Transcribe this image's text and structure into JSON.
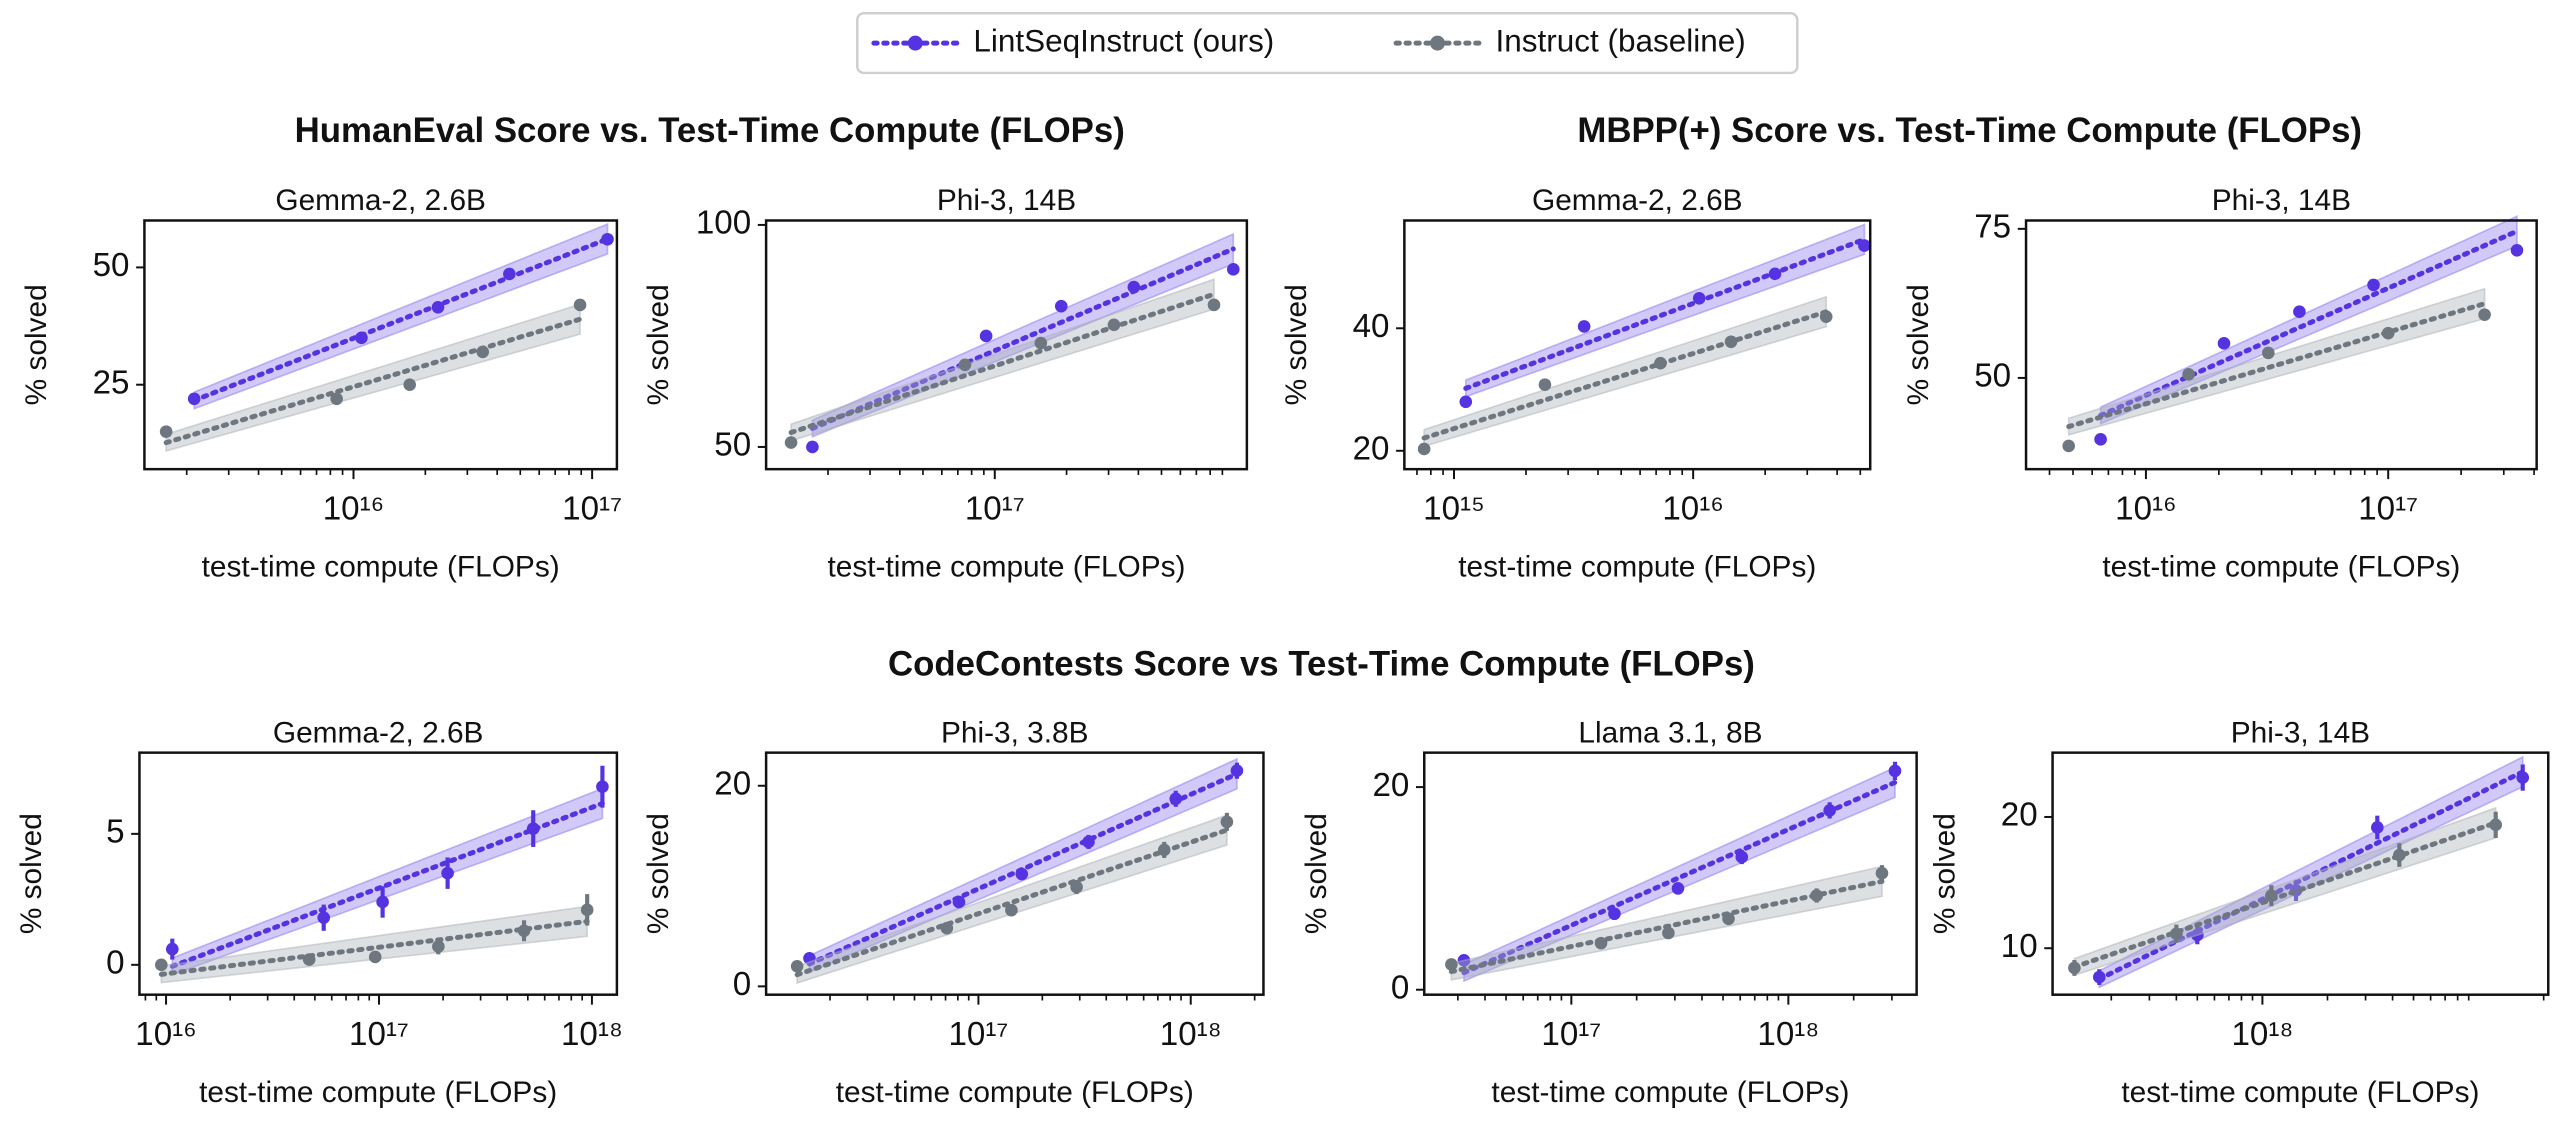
{
  "group_titles": [
    "HumanEval Score vs. Test-Time Compute (FLOPs)",
    "MBPP(+) Score vs. Test-Time Compute (FLOPs)",
    "CodeContests Score vs Test-Time Compute (FLOPs)"
  ],
  "chart_data": [
    {
      "type": "line",
      "title": "Gemma-2, 2.6B",
      "xlabel": "test-time compute (FLOPs)",
      "ylabel": "% solved",
      "xscale": "log",
      "xlim": [
        1330000000000000.0,
        1.27e+17
      ],
      "xticks": [
        {
          "value": 1e+16,
          "label": "10¹⁶"
        },
        {
          "value": 1e+17,
          "label": "10¹⁷"
        }
      ],
      "ylim": [
        7,
        60
      ],
      "yticks": [
        25,
        50
      ],
      "series": [
        {
          "name": "LintSeqInstruct (ours)",
          "color": "#5533e0",
          "x": [
            2150000000000000.0,
            1.08e+16,
            2.26e+16,
            4.5e+16,
            1.16e+17
          ],
          "values": [
            22,
            35,
            41.5,
            48.6,
            56
          ]
        },
        {
          "name": "Instruct (baseline)",
          "color": "#6e7780",
          "x": [
            1640000000000000.0,
            8500000000000000.0,
            1.72e+16,
            3.48e+16,
            8.9e+16
          ],
          "values": [
            15,
            22,
            25,
            32,
            42
          ]
        }
      ]
    },
    {
      "type": "line",
      "title": "Phi-3, 14B",
      "xlabel": "test-time compute (FLOPs)",
      "ylabel": "% solved",
      "xscale": "log",
      "xlim": [
        1.1e+16,
        1.14e+18
      ],
      "xticks": [
        {
          "value": 1e+17,
          "label": "10¹⁷"
        }
      ],
      "ylim": [
        45,
        101
      ],
      "yticks": [
        50,
        100
      ],
      "series": [
        {
          "name": "LintSeqInstruct (ours)",
          "color": "#5533e0",
          "x": [
            1.72e+16,
            9.2e+16,
            1.9e+17,
            3.83e+17,
            1e+18
          ],
          "values": [
            50,
            75,
            81.7,
            86,
            90
          ]
        },
        {
          "name": "Instruct (baseline)",
          "color": "#6e7780",
          "x": [
            1.4e+16,
            7.5e+16,
            1.56e+17,
            3.16e+17,
            8.3e+17
          ],
          "values": [
            51,
            68.5,
            73.4,
            77.5,
            82
          ]
        }
      ]
    },
    {
      "type": "line",
      "title": "Gemma-2, 2.6B",
      "xlabel": "test-time compute (FLOPs)",
      "ylabel": "% solved",
      "xscale": "log",
      "xlim": [
        620000000000000.0,
        5.5e+16
      ],
      "xticks": [
        {
          "value": 1000000000000000.0,
          "label": "10¹⁵"
        },
        {
          "value": 1e+16,
          "label": "10¹⁶"
        }
      ],
      "ylim": [
        17,
        57.6
      ],
      "yticks": [
        20,
        40
      ],
      "series": [
        {
          "name": "LintSeqInstruct (ours)",
          "color": "#5533e0",
          "x": [
            1120000000000000.0,
            3500000000000000.0,
            1.06e+16,
            2.2e+16,
            5.2e+16
          ],
          "values": [
            28,
            40.3,
            44.9,
            48.9,
            53.5
          ]
        },
        {
          "name": "Instruct (baseline)",
          "color": "#6e7780",
          "x": [
            750000000000000.0,
            2400000000000000.0,
            7300000000000000.0,
            1.44e+16,
            3.6e+16
          ],
          "values": [
            20.3,
            30.8,
            34.3,
            37.8,
            41.9
          ]
        }
      ]
    },
    {
      "type": "line",
      "title": "Phi-3, 14B",
      "xlabel": "test-time compute (FLOPs)",
      "ylabel": "% solved",
      "xscale": "log",
      "xlim": [
        3200000000000000.0,
        4.1e+17
      ],
      "xticks": [
        {
          "value": 1e+16,
          "label": "10¹⁶"
        },
        {
          "value": 1e+17,
          "label": "10¹⁷"
        }
      ],
      "ylim": [
        34.7,
        76.4
      ],
      "yticks": [
        50,
        75
      ],
      "series": [
        {
          "name": "LintSeqInstruct (ours)",
          "color": "#5533e0",
          "x": [
            6500000000000000.0,
            2.1e+16,
            4.3e+16,
            8.7e+16,
            3.4e+17
          ],
          "values": [
            39.7,
            55.8,
            61.1,
            65.6,
            71.4
          ]
        },
        {
          "name": "Instruct (baseline)",
          "color": "#6e7780",
          "x": [
            4800000000000000.0,
            1.5e+16,
            3.2e+16,
            1e+17,
            2.5e+17
          ],
          "values": [
            38.6,
            50.6,
            54.2,
            57.5,
            60.6
          ]
        }
      ]
    },
    {
      "type": "line",
      "title": "Gemma-2, 2.6B",
      "xlabel": "test-time compute (FLOPs)",
      "ylabel": "% solved",
      "xscale": "log",
      "xlim": [
        7500000000000000.0,
        1.31e+18
      ],
      "xticks": [
        {
          "value": 1e+16,
          "label": "10¹⁶"
        },
        {
          "value": 1e+17,
          "label": "10¹⁷"
        },
        {
          "value": 1e+18,
          "label": "10¹⁸"
        }
      ],
      "ylim": [
        -1.14,
        8.1
      ],
      "yticks": [
        0,
        5
      ],
      "series": [
        {
          "name": "LintSeqInstruct (ours)",
          "color": "#5533e0",
          "x": [
            1.07e+16,
            5.5e+16,
            1.04e+17,
            2.1e+17,
            5.3e+17,
            1.12e+18
          ],
          "values": [
            0.6,
            1.8,
            2.4,
            3.5,
            5.2,
            6.8
          ],
          "errors": [
            0.4,
            0.5,
            0.6,
            0.6,
            0.7,
            0.8
          ]
        },
        {
          "name": "Instruct (baseline)",
          "color": "#6e7780",
          "x": [
            9500000000000000.0,
            4.7e+16,
            9.6e+16,
            1.9e+17,
            4.8e+17,
            9.5e+17
          ],
          "values": [
            0,
            0.2,
            0.3,
            0.7,
            1.3,
            2.1
          ],
          "errors": [
            0.2,
            0.2,
            0.2,
            0.3,
            0.4,
            0.6
          ]
        }
      ]
    },
    {
      "type": "line",
      "title": "Phi-3, 3.8B",
      "xlabel": "test-time compute (FLOPs)",
      "ylabel": "% solved",
      "xscale": "log",
      "xlim": [
        1e+16,
        2.2e+18
      ],
      "xticks": [
        {
          "value": 1e+17,
          "label": "10¹⁷"
        },
        {
          "value": 1e+18,
          "label": "10¹⁸"
        }
      ],
      "ylim": [
        -0.83,
        23.3
      ],
      "yticks": [
        0,
        20
      ],
      "series": [
        {
          "name": "LintSeqInstruct (ours)",
          "color": "#5533e0",
          "x": [
            1.6e+16,
            8.1e+16,
            1.6e+17,
            3.3e+17,
            8.5e+17,
            1.65e+18
          ],
          "values": [
            2.8,
            8.4,
            11.2,
            14.4,
            18.7,
            21.5
          ],
          "errors": [
            0.5,
            0.6,
            0.6,
            0.7,
            0.8,
            0.8
          ]
        },
        {
          "name": "Instruct (baseline)",
          "color": "#6e7780",
          "x": [
            1.4e+16,
            7.1e+16,
            1.43e+17,
            2.9e+17,
            7.5e+17,
            1.48e+18
          ],
          "values": [
            2,
            5.8,
            7.6,
            9.9,
            13.6,
            16.4
          ],
          "errors": [
            0.5,
            0.6,
            0.6,
            0.7,
            0.8,
            0.9
          ]
        }
      ]
    },
    {
      "type": "line",
      "title": "Llama 3.1, 8B",
      "xlabel": "test-time compute (FLOPs)",
      "ylabel": "% solved",
      "xscale": "log",
      "xlim": [
        2.1e+16,
        3.9e+18
      ],
      "xticks": [
        {
          "value": 1e+17,
          "label": "10¹⁷"
        },
        {
          "value": 1e+18,
          "label": "10¹⁸"
        }
      ],
      "ylim": [
        -0.49,
        23.4
      ],
      "yticks": [
        0,
        20
      ],
      "series": [
        {
          "name": "LintSeqInstruct (ours)",
          "color": "#5533e0",
          "x": [
            3.2e+16,
            1.58e+17,
            3.1e+17,
            6.1e+17,
            1.55e+18,
            3.1e+18
          ],
          "values": [
            2.9,
            7.5,
            10,
            13.1,
            17.7,
            21.6
          ],
          "errors": [
            0.5,
            0.6,
            0.6,
            0.7,
            0.8,
            0.9
          ]
        },
        {
          "name": "Instruct (baseline)",
          "color": "#6e7780",
          "x": [
            2.8e+16,
            1.37e+17,
            2.8e+17,
            5.3e+17,
            1.35e+18,
            2.7e+18
          ],
          "values": [
            2.5,
            4.6,
            5.6,
            7,
            9.3,
            11.5
          ],
          "errors": [
            0.5,
            0.5,
            0.5,
            0.6,
            0.7,
            0.8
          ]
        }
      ]
    },
    {
      "type": "line",
      "title": "Phi-3, 14B",
      "xlabel": "test-time compute (FLOPs)",
      "ylabel": "% solved",
      "xscale": "log",
      "xlim": [
        1.07e+17,
        2.1e+19
      ],
      "xticks": [
        {
          "value": 1e+18,
          "label": "10¹⁸"
        }
      ],
      "ylim": [
        6.46,
        24.9
      ],
      "yticks": [
        10,
        20
      ],
      "series": [
        {
          "name": "LintSeqInstruct (ours)",
          "color": "#5533e0",
          "x": [
            1.76e+17,
            5e+17,
            1.43e+18,
            3.4e+18,
            1.6e+19
          ],
          "values": [
            7.8,
            11,
            14.4,
            19.2,
            23
          ],
          "errors": [
            0.6,
            0.7,
            0.8,
            0.9,
            1
          ]
        },
        {
          "name": "Instruct (baseline)",
          "color": "#6e7780",
          "x": [
            1.35e+17,
            4e+17,
            1.1e+18,
            4.3e+18,
            1.2e+19
          ],
          "values": [
            8.5,
            11.1,
            14,
            17.1,
            19.4
          ],
          "errors": [
            0.6,
            0.7,
            0.8,
            0.9,
            1
          ]
        }
      ]
    }
  ]
}
